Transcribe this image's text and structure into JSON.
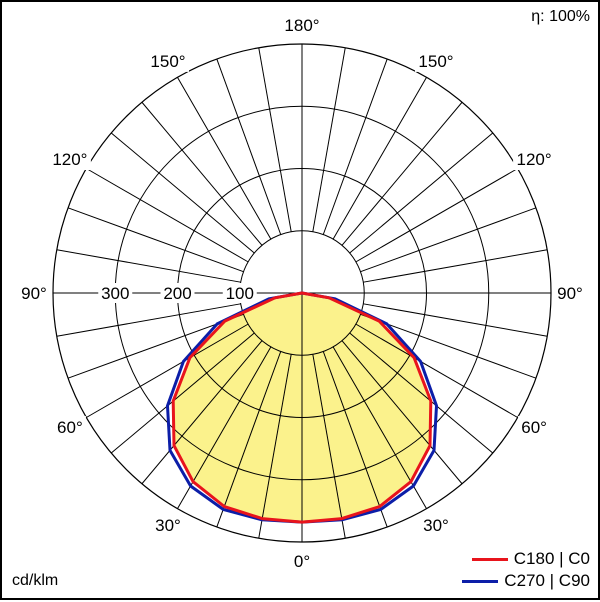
{
  "efficiency_label": "η: 100%",
  "unit_label": "cd/klm",
  "chart_data": {
    "type": "polar",
    "title": "",
    "angle_labels": {
      "bottom": "0°",
      "top": "180°",
      "left": [
        "30°",
        "60°",
        "90°",
        "120°",
        "150°"
      ],
      "right": [
        "30°",
        "60°",
        "90°",
        "120°",
        "150°"
      ]
    },
    "radial_ticks": [
      {
        "value": 100,
        "label": "100"
      },
      {
        "value": 200,
        "label": "200"
      },
      {
        "value": 300,
        "label": "300"
      }
    ],
    "radial_max": 400,
    "grid": true,
    "legend_position": "bottom-right",
    "series": [
      {
        "name": "C180 | C0",
        "color": "#e8141c",
        "fill": "#fbf28c",
        "points": [
          {
            "angle": 0,
            "value": 368
          },
          {
            "angle": 10,
            "value": 368
          },
          {
            "angle": 20,
            "value": 365
          },
          {
            "angle": 30,
            "value": 350
          },
          {
            "angle": 40,
            "value": 320
          },
          {
            "angle": 50,
            "value": 270
          },
          {
            "angle": 60,
            "value": 208
          },
          {
            "angle": 70,
            "value": 132
          },
          {
            "angle": 80,
            "value": 44
          },
          {
            "angle": 90,
            "value": 0
          }
        ]
      },
      {
        "name": "C270 | C90",
        "color": "#0c1ea8",
        "points": [
          {
            "angle": 0,
            "value": 368
          },
          {
            "angle": 10,
            "value": 370
          },
          {
            "angle": 20,
            "value": 370
          },
          {
            "angle": 30,
            "value": 358
          },
          {
            "angle": 40,
            "value": 330
          },
          {
            "angle": 50,
            "value": 282
          },
          {
            "angle": 60,
            "value": 220
          },
          {
            "angle": 70,
            "value": 145
          },
          {
            "angle": 80,
            "value": 54
          },
          {
            "angle": 90,
            "value": 0
          }
        ]
      }
    ]
  }
}
